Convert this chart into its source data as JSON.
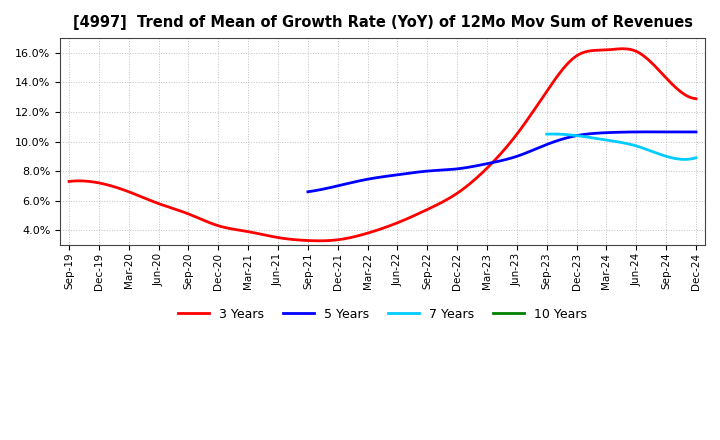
{
  "title": "[4997]  Trend of Mean of Growth Rate (YoY) of 12Mo Mov Sum of Revenues",
  "ylim": [
    0.03,
    0.17
  ],
  "yticks": [
    0.04,
    0.06,
    0.08,
    0.1,
    0.12,
    0.14,
    0.16
  ],
  "background_color": "#ffffff",
  "grid_color": "#b0b0b0",
  "series_3y": {
    "color": "#ff0000",
    "x_indices": [
      0,
      1,
      2,
      3,
      4,
      5,
      6,
      7,
      8,
      9,
      10,
      11,
      12,
      13,
      14,
      15,
      16,
      17,
      18,
      19,
      20,
      21
    ],
    "data": [
      0.073,
      0.072,
      0.066,
      0.058,
      0.051,
      0.043,
      0.039,
      0.035,
      0.033,
      0.0335,
      0.038,
      0.045,
      0.054,
      0.065,
      0.082,
      0.105,
      0.134,
      0.158,
      0.162,
      0.161,
      0.143,
      0.129
    ]
  },
  "series_5y": {
    "color": "#0000ff",
    "x_indices": [
      8,
      9,
      10,
      11,
      12,
      13,
      14,
      15,
      16,
      17,
      18,
      19,
      20,
      21
    ],
    "data": [
      0.066,
      0.07,
      0.0745,
      0.0775,
      0.08,
      0.0815,
      0.085,
      0.09,
      0.098,
      0.104,
      0.106,
      0.1065,
      0.1065,
      0.1065
    ]
  },
  "series_7y": {
    "color": "#00ccff",
    "x_indices": [
      16,
      17,
      18,
      19,
      20,
      21
    ],
    "data": [
      0.105,
      0.104,
      0.101,
      0.097,
      0.09,
      0.089
    ]
  },
  "x_labels": [
    "Sep-19",
    "Dec-19",
    "Mar-20",
    "Jun-20",
    "Sep-20",
    "Dec-20",
    "Mar-21",
    "Jun-21",
    "Sep-21",
    "Dec-21",
    "Mar-22",
    "Jun-22",
    "Sep-22",
    "Dec-22",
    "Mar-23",
    "Jun-23",
    "Sep-23",
    "Dec-23",
    "Mar-24",
    "Jun-24",
    "Sep-24",
    "Dec-24"
  ],
  "legend_labels": [
    "3 Years",
    "5 Years",
    "7 Years",
    "10 Years"
  ],
  "legend_colors": [
    "#ff0000",
    "#0000ff",
    "#00ccff",
    "#008000"
  ]
}
